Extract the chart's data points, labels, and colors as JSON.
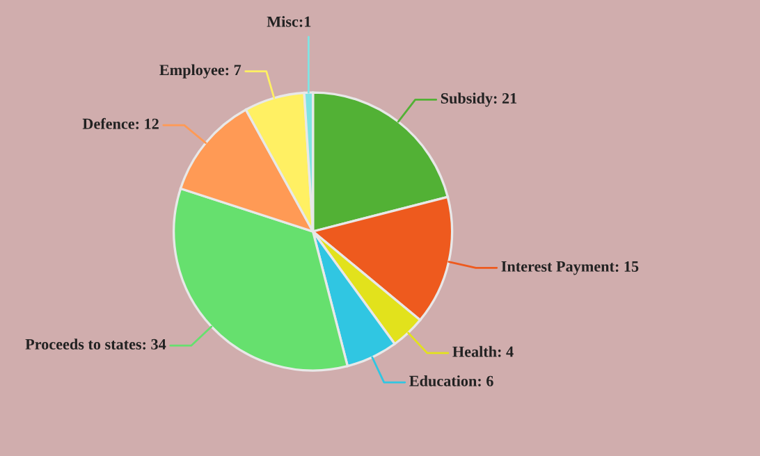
{
  "chart_data": {
    "type": "pie",
    "categories": [
      "Subsidy",
      "Interest Payment",
      "Health",
      "Education",
      "Proceeds to states",
      "Defence",
      "Employee",
      "Misc"
    ],
    "values": [
      21,
      15,
      4,
      6,
      34,
      12,
      7,
      1
    ],
    "value_labels": [
      ": 21",
      ": 15",
      ": 4",
      ": 6",
      ": 34",
      ": 12",
      ": 7",
      ":1"
    ],
    "colors": [
      "#52b135",
      "#ee5a1e",
      "#e2e21c",
      "#30c6e2",
      "#66e06e",
      "#ff9a55",
      "#fff063",
      "#7fe3e3"
    ]
  }
}
